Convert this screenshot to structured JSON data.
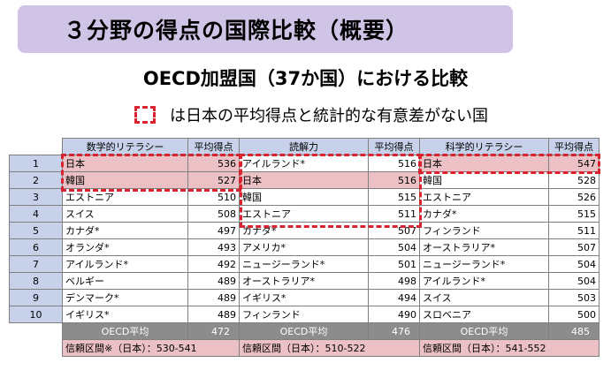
{
  "title": "３分野の得点の国際比較（概要）",
  "subtitle": "OECD加盟国（37か国）における比較",
  "legend_text": "は日本の平均得点と統計的な有意差がない国",
  "tables": {
    "math": {
      "header": "数学的リテラシー",
      "score_header": "平均得点"
    },
    "reading": {
      "header": "読解力",
      "score_header": "平均得点"
    },
    "science": {
      "header": "科学的リテラシー",
      "score_header": "平均得点"
    }
  },
  "rows": [
    {
      "rank": "1",
      "math": {
        "country": "日本",
        "score": "536"
      },
      "reading": {
        "country": "アイルランド*",
        "score": "516"
      },
      "science": {
        "country": "日本",
        "score": "547"
      }
    },
    {
      "rank": "2",
      "math": {
        "country": "韓国",
        "score": "527"
      },
      "reading": {
        "country": "日本",
        "score": "516"
      },
      "science": {
        "country": "韓国",
        "score": "528"
      }
    },
    {
      "rank": "3",
      "math": {
        "country": "エストニア",
        "score": "510"
      },
      "reading": {
        "country": "韓国",
        "score": "515"
      },
      "science": {
        "country": "エストニア",
        "score": "526"
      }
    },
    {
      "rank": "4",
      "math": {
        "country": "スイス",
        "score": "508"
      },
      "reading": {
        "country": "エストニア",
        "score": "511"
      },
      "science": {
        "country": "カナダ*",
        "score": "515"
      }
    },
    {
      "rank": "5",
      "math": {
        "country": "カナダ*",
        "score": "497"
      },
      "reading": {
        "country": "カナダ*",
        "score": "507"
      },
      "science": {
        "country": "フィンランド",
        "score": "511"
      }
    },
    {
      "rank": "6",
      "math": {
        "country": "オランダ*",
        "score": "493"
      },
      "reading": {
        "country": "アメリカ*",
        "score": "504"
      },
      "science": {
        "country": "オーストラリア*",
        "score": "507"
      }
    },
    {
      "rank": "7",
      "math": {
        "country": "アイルランド*",
        "score": "492"
      },
      "reading": {
        "country": "ニュージーランド*",
        "score": "501"
      },
      "science": {
        "country": "ニュージーランド*",
        "score": "504"
      }
    },
    {
      "rank": "8",
      "math": {
        "country": "ベルギー",
        "score": "489"
      },
      "reading": {
        "country": "オーストラリア*",
        "score": "498"
      },
      "science": {
        "country": "アイルランド*",
        "score": "504"
      }
    },
    {
      "rank": "9",
      "math": {
        "country": "デンマーク*",
        "score": "489"
      },
      "reading": {
        "country": "イギリス*",
        "score": "494"
      },
      "science": {
        "country": "スイス",
        "score": "503"
      }
    },
    {
      "rank": "10",
      "math": {
        "country": "イギリス*",
        "score": "489"
      },
      "reading": {
        "country": "フィンランド",
        "score": "490"
      },
      "science": {
        "country": "スロベニア",
        "score": "500"
      }
    }
  ],
  "average": {
    "label": "OECD平均",
    "math": "472",
    "reading": "476",
    "science": "485"
  },
  "confidence": {
    "math": "信頼区間※（日本）：530-541",
    "reading": "信頼区間（日本）：510-522",
    "science": "信頼区間（日本）：541-552"
  },
  "highlight_color": "#d9232f",
  "title_bg": "#cfc4e6"
}
